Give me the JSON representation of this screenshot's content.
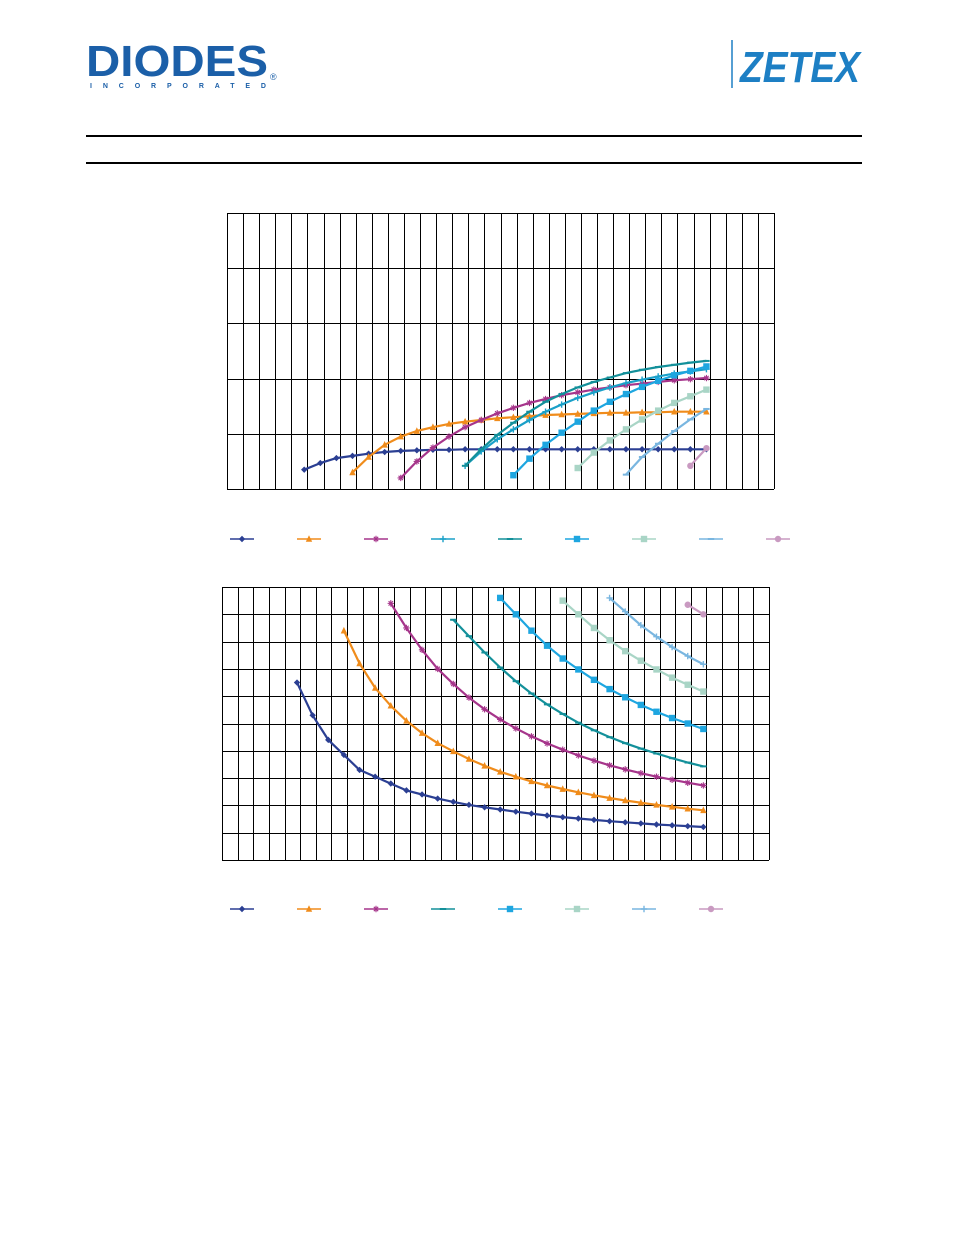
{
  "header": {
    "left_logo_text": "DIODES",
    "left_logo_subtext": "INCORPORATED",
    "left_logo_mark": "®",
    "right_logo_text": "ZETEX"
  },
  "colors": {
    "diodes_blue": "#1b5fa8",
    "zetex_blue": "#1d7fc4",
    "grid": "#000000"
  },
  "chart_data": [
    {
      "type": "line",
      "grid": true,
      "xlim": [
        0,
        34
      ],
      "ylim": [
        0,
        5
      ],
      "x_divisions": 34,
      "y_divisions": 5,
      "legend_placement": "bottom",
      "series": [
        {
          "color": "#2b3f93",
          "marker": "diamond",
          "points": [
            [
              4.8,
              0.35
            ],
            [
              5.8,
              0.47
            ],
            [
              6.8,
              0.56
            ],
            [
              7.8,
              0.6
            ],
            [
              8.8,
              0.64
            ],
            [
              9.8,
              0.67
            ],
            [
              10.8,
              0.69
            ],
            [
              11.8,
              0.7
            ],
            [
              12.8,
              0.71
            ],
            [
              13.8,
              0.71
            ],
            [
              14.8,
              0.72
            ],
            [
              15.8,
              0.72
            ],
            [
              16.8,
              0.72
            ],
            [
              17.8,
              0.72
            ],
            [
              18.8,
              0.72
            ],
            [
              19.8,
              0.72
            ],
            [
              20.8,
              0.72
            ],
            [
              21.8,
              0.72
            ],
            [
              22.8,
              0.72
            ],
            [
              23.8,
              0.72
            ],
            [
              24.8,
              0.72
            ],
            [
              25.8,
              0.72
            ],
            [
              26.8,
              0.72
            ],
            [
              27.8,
              0.72
            ],
            [
              28.8,
              0.72
            ],
            [
              29.8,
              0.72
            ]
          ]
        },
        {
          "color": "#f08c1b",
          "marker": "triangle",
          "points": [
            [
              7.8,
              0.3
            ],
            [
              8.8,
              0.58
            ],
            [
              9.8,
              0.8
            ],
            [
              10.8,
              0.95
            ],
            [
              11.8,
              1.05
            ],
            [
              12.8,
              1.12
            ],
            [
              13.8,
              1.18
            ],
            [
              14.8,
              1.22
            ],
            [
              15.8,
              1.25
            ],
            [
              16.8,
              1.28
            ],
            [
              17.8,
              1.3
            ],
            [
              18.8,
              1.32
            ],
            [
              19.8,
              1.34
            ],
            [
              20.8,
              1.35
            ],
            [
              21.8,
              1.36
            ],
            [
              22.8,
              1.37
            ],
            [
              23.8,
              1.38
            ],
            [
              24.8,
              1.38
            ],
            [
              25.8,
              1.39
            ],
            [
              26.8,
              1.39
            ],
            [
              27.8,
              1.4
            ],
            [
              28.8,
              1.4
            ],
            [
              29.8,
              1.4
            ]
          ]
        },
        {
          "color": "#a6358b",
          "marker": "star",
          "points": [
            [
              10.8,
              0.2
            ],
            [
              11.8,
              0.5
            ],
            [
              12.8,
              0.75
            ],
            [
              13.8,
              0.95
            ],
            [
              14.8,
              1.12
            ],
            [
              15.8,
              1.25
            ],
            [
              16.8,
              1.37
            ],
            [
              17.8,
              1.47
            ],
            [
              18.8,
              1.56
            ],
            [
              19.8,
              1.63
            ],
            [
              20.8,
              1.7
            ],
            [
              21.8,
              1.75
            ],
            [
              22.8,
              1.8
            ],
            [
              23.8,
              1.84
            ],
            [
              24.8,
              1.88
            ],
            [
              25.8,
              1.91
            ],
            [
              26.8,
              1.94
            ],
            [
              27.8,
              1.97
            ],
            [
              28.8,
              1.99
            ],
            [
              29.8,
              2.01
            ]
          ]
        },
        {
          "color": "#1aa0c8",
          "marker": "plus",
          "points": [
            [
              14.8,
              0.42
            ],
            [
              15.8,
              0.68
            ],
            [
              16.8,
              0.9
            ],
            [
              17.8,
              1.08
            ],
            [
              18.8,
              1.25
            ],
            [
              19.8,
              1.4
            ],
            [
              20.8,
              1.53
            ],
            [
              21.8,
              1.65
            ],
            [
              22.8,
              1.75
            ],
            [
              23.8,
              1.84
            ],
            [
              24.8,
              1.92
            ],
            [
              25.8,
              1.98
            ],
            [
              26.8,
              2.04
            ],
            [
              27.8,
              2.09
            ],
            [
              28.8,
              2.13
            ],
            [
              29.8,
              2.17
            ]
          ]
        },
        {
          "color": "#13909a",
          "marker": "dash",
          "points": [
            [
              14.8,
              0.42
            ],
            [
              15.8,
              0.72
            ],
            [
              16.8,
              0.98
            ],
            [
              17.8,
              1.2
            ],
            [
              18.8,
              1.4
            ],
            [
              19.8,
              1.58
            ],
            [
              20.8,
              1.72
            ],
            [
              21.8,
              1.84
            ],
            [
              22.8,
              1.94
            ],
            [
              23.8,
              2.02
            ],
            [
              24.8,
              2.1
            ],
            [
              25.8,
              2.16
            ],
            [
              26.8,
              2.21
            ],
            [
              27.8,
              2.25
            ],
            [
              28.8,
              2.29
            ],
            [
              29.8,
              2.32
            ]
          ]
        },
        {
          "color": "#1ea6e0",
          "marker": "square",
          "points": [
            [
              17.8,
              0.25
            ],
            [
              18.8,
              0.55
            ],
            [
              19.8,
              0.8
            ],
            [
              20.8,
              1.02
            ],
            [
              21.8,
              1.22
            ],
            [
              22.8,
              1.42
            ],
            [
              23.8,
              1.58
            ],
            [
              24.8,
              1.72
            ],
            [
              25.8,
              1.85
            ],
            [
              26.8,
              1.96
            ],
            [
              27.8,
              2.06
            ],
            [
              28.8,
              2.14
            ],
            [
              29.8,
              2.22
            ]
          ]
        },
        {
          "color": "#a9d5c6",
          "marker": "square",
          "points": [
            [
              21.8,
              0.38
            ],
            [
              22.8,
              0.66
            ],
            [
              23.8,
              0.88
            ],
            [
              24.8,
              1.08
            ],
            [
              25.8,
              1.26
            ],
            [
              26.8,
              1.42
            ],
            [
              27.8,
              1.56
            ],
            [
              28.8,
              1.68
            ],
            [
              29.8,
              1.8
            ]
          ]
        },
        {
          "color": "#79b6e0",
          "marker": "dash",
          "points": [
            [
              24.8,
              0.26
            ],
            [
              25.8,
              0.58
            ],
            [
              26.8,
              0.82
            ],
            [
              27.8,
              1.05
            ],
            [
              28.8,
              1.26
            ],
            [
              29.8,
              1.45
            ]
          ]
        },
        {
          "color": "#c99ac1",
          "marker": "circle",
          "points": [
            [
              28.8,
              0.42
            ],
            [
              29.8,
              0.74
            ]
          ]
        }
      ]
    },
    {
      "type": "line",
      "grid": true,
      "xlim": [
        0,
        35
      ],
      "ylim": [
        0,
        10
      ],
      "x_divisions": 35,
      "y_divisions": 10,
      "legend_placement": "bottom",
      "series": [
        {
          "color": "#2b3f93",
          "marker": "diamond",
          "points": [
            [
              4.8,
              6.5
            ],
            [
              5.8,
              5.3
            ],
            [
              6.8,
              4.4
            ],
            [
              7.8,
              3.85
            ],
            [
              8.8,
              3.3
            ],
            [
              9.8,
              3.05
            ],
            [
              10.8,
              2.8
            ],
            [
              11.8,
              2.55
            ],
            [
              12.8,
              2.4
            ],
            [
              13.8,
              2.25
            ],
            [
              14.8,
              2.13
            ],
            [
              15.8,
              2.02
            ],
            [
              16.8,
              1.93
            ],
            [
              17.8,
              1.85
            ],
            [
              18.8,
              1.77
            ],
            [
              19.8,
              1.7
            ],
            [
              20.8,
              1.63
            ],
            [
              21.8,
              1.57
            ],
            [
              22.8,
              1.52
            ],
            [
              23.8,
              1.47
            ],
            [
              24.8,
              1.42
            ],
            [
              25.8,
              1.38
            ],
            [
              26.8,
              1.34
            ],
            [
              27.8,
              1.3
            ],
            [
              28.8,
              1.27
            ],
            [
              29.8,
              1.24
            ],
            [
              30.8,
              1.21
            ]
          ]
        },
        {
          "color": "#f08c1b",
          "marker": "triangle",
          "points": [
            [
              7.8,
              8.4
            ],
            [
              8.8,
              7.2
            ],
            [
              9.8,
              6.3
            ],
            [
              10.8,
              5.65
            ],
            [
              11.8,
              5.1
            ],
            [
              12.8,
              4.65
            ],
            [
              13.8,
              4.28
            ],
            [
              14.8,
              3.98
            ],
            [
              15.8,
              3.7
            ],
            [
              16.8,
              3.45
            ],
            [
              17.8,
              3.23
            ],
            [
              18.8,
              3.05
            ],
            [
              19.8,
              2.88
            ],
            [
              20.8,
              2.73
            ],
            [
              21.8,
              2.6
            ],
            [
              22.8,
              2.48
            ],
            [
              23.8,
              2.37
            ],
            [
              24.8,
              2.27
            ],
            [
              25.8,
              2.18
            ],
            [
              26.8,
              2.1
            ],
            [
              27.8,
              2.02
            ],
            [
              28.8,
              1.95
            ],
            [
              29.8,
              1.88
            ],
            [
              30.8,
              1.82
            ]
          ]
        },
        {
          "color": "#a6358b",
          "marker": "star",
          "points": [
            [
              10.8,
              9.4
            ],
            [
              11.8,
              8.5
            ],
            [
              12.8,
              7.7
            ],
            [
              13.8,
              7.0
            ],
            [
              14.8,
              6.45
            ],
            [
              15.8,
              5.95
            ],
            [
              16.8,
              5.52
            ],
            [
              17.8,
              5.15
            ],
            [
              18.8,
              4.82
            ],
            [
              19.8,
              4.53
            ],
            [
              20.8,
              4.27
            ],
            [
              21.8,
              4.04
            ],
            [
              22.8,
              3.83
            ],
            [
              23.8,
              3.64
            ],
            [
              24.8,
              3.47
            ],
            [
              25.8,
              3.32
            ],
            [
              26.8,
              3.18
            ],
            [
              27.8,
              3.05
            ],
            [
              28.8,
              2.94
            ],
            [
              29.8,
              2.83
            ],
            [
              30.8,
              2.73
            ]
          ]
        },
        {
          "color": "#13909a",
          "marker": "dash",
          "points": [
            [
              14.8,
              8.8
            ],
            [
              15.8,
              8.2
            ],
            [
              16.8,
              7.6
            ],
            [
              17.8,
              7.05
            ],
            [
              18.8,
              6.55
            ],
            [
              19.8,
              6.1
            ],
            [
              20.8,
              5.7
            ],
            [
              21.8,
              5.35
            ],
            [
              22.8,
              5.03
            ],
            [
              23.8,
              4.75
            ],
            [
              24.8,
              4.5
            ],
            [
              25.8,
              4.28
            ],
            [
              26.8,
              4.08
            ],
            [
              27.8,
              3.9
            ],
            [
              28.8,
              3.73
            ],
            [
              29.8,
              3.57
            ],
            [
              30.8,
              3.43
            ]
          ]
        },
        {
          "color": "#1ea6e0",
          "marker": "square",
          "points": [
            [
              17.8,
              9.6
            ],
            [
              18.8,
              9.0
            ],
            [
              19.8,
              8.4
            ],
            [
              20.8,
              7.85
            ],
            [
              21.8,
              7.38
            ],
            [
              22.8,
              6.98
            ],
            [
              23.8,
              6.6
            ],
            [
              24.8,
              6.26
            ],
            [
              25.8,
              5.96
            ],
            [
              26.8,
              5.68
            ],
            [
              27.8,
              5.43
            ],
            [
              28.8,
              5.2
            ],
            [
              29.8,
              5.0
            ],
            [
              30.8,
              4.8
            ]
          ]
        },
        {
          "color": "#a9d5c6",
          "marker": "square",
          "points": [
            [
              21.8,
              9.5
            ],
            [
              22.8,
              9.0
            ],
            [
              23.8,
              8.5
            ],
            [
              24.8,
              8.05
            ],
            [
              25.8,
              7.65
            ],
            [
              26.8,
              7.3
            ],
            [
              27.8,
              6.98
            ],
            [
              28.8,
              6.68
            ],
            [
              29.8,
              6.42
            ],
            [
              30.8,
              6.17
            ]
          ]
        },
        {
          "color": "#79b6e0",
          "marker": "plus",
          "points": [
            [
              24.8,
              9.6
            ],
            [
              25.8,
              9.1
            ],
            [
              26.8,
              8.6
            ],
            [
              27.8,
              8.18
            ],
            [
              28.8,
              7.8
            ],
            [
              29.8,
              7.47
            ],
            [
              30.8,
              7.17
            ]
          ]
        },
        {
          "color": "#c99ac1",
          "marker": "circle",
          "points": [
            [
              29.8,
              9.35
            ],
            [
              30.8,
              9.0
            ]
          ]
        }
      ]
    }
  ]
}
